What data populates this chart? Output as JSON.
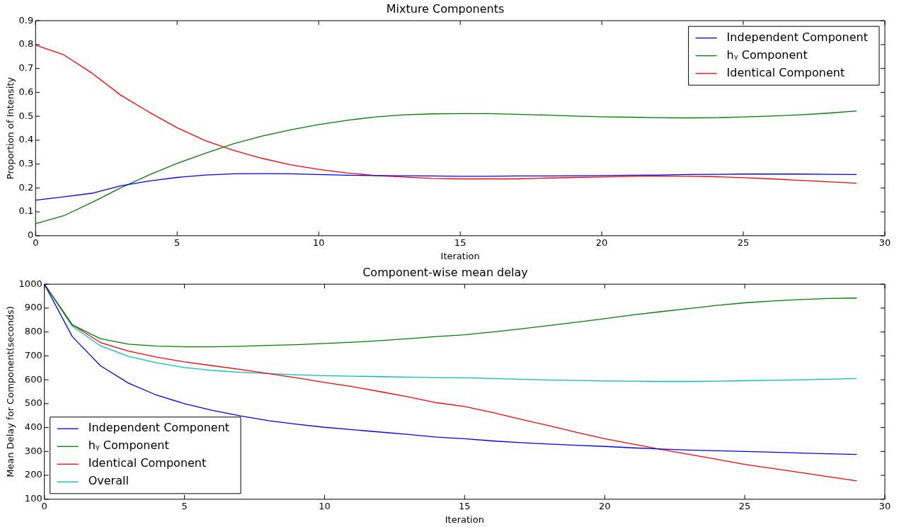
{
  "chart_data": [
    {
      "type": "line",
      "title": "Mixture Components",
      "xlabel": "Iteration",
      "ylabel": "Proportion of Intensity",
      "x": [
        0,
        1,
        2,
        3,
        4,
        5,
        6,
        7,
        8,
        9,
        10,
        11,
        12,
        13,
        14,
        15,
        16,
        17,
        18,
        19,
        20,
        21,
        22,
        23,
        24,
        25,
        26,
        27,
        28,
        29
      ],
      "series": [
        {
          "name": "Independent Component",
          "color": "#0000ff",
          "values": [
            0.149,
            0.163,
            0.178,
            0.209,
            0.229,
            0.244,
            0.254,
            0.259,
            0.26,
            0.259,
            0.256,
            0.253,
            0.252,
            0.251,
            0.25,
            0.249,
            0.249,
            0.25,
            0.25,
            0.251,
            0.252,
            0.253,
            0.254,
            0.256,
            0.257,
            0.258,
            0.258,
            0.258,
            0.257,
            0.256
          ]
        },
        {
          "name": "hᵧ Component",
          "color": "#008000",
          "values": [
            0.05,
            0.084,
            0.14,
            0.2,
            0.254,
            0.303,
            0.345,
            0.385,
            0.417,
            0.443,
            0.465,
            0.483,
            0.497,
            0.506,
            0.51,
            0.511,
            0.511,
            0.508,
            0.505,
            0.501,
            0.498,
            0.496,
            0.494,
            0.493,
            0.494,
            0.497,
            0.501,
            0.506,
            0.513,
            0.522
          ]
        },
        {
          "name": "Identical Component",
          "color": "#ff0000",
          "values": [
            0.798,
            0.757,
            0.68,
            0.589,
            0.518,
            0.452,
            0.398,
            0.357,
            0.324,
            0.297,
            0.278,
            0.263,
            0.252,
            0.246,
            0.24,
            0.238,
            0.238,
            0.238,
            0.241,
            0.244,
            0.246,
            0.248,
            0.25,
            0.249,
            0.247,
            0.243,
            0.238,
            0.232,
            0.226,
            0.22
          ]
        }
      ],
      "xlim": [
        0,
        30
      ],
      "xticks": [
        0,
        5,
        10,
        15,
        20,
        25,
        30
      ],
      "ylim": [
        0,
        0.9
      ],
      "yticks": [
        0,
        0.1,
        0.2,
        0.3,
        0.4,
        0.5,
        0.6,
        0.7,
        0.8,
        0.9
      ],
      "legend": "top right",
      "marker": "none",
      "line_style": "solid"
    },
    {
      "type": "line",
      "title": "Component-wise mean delay",
      "xlabel": "Iteration",
      "ylabel": "Mean Delay for Component(seconds)",
      "x": [
        0,
        1,
        2,
        3,
        4,
        5,
        6,
        7,
        8,
        9,
        10,
        11,
        12,
        13,
        14,
        15,
        16,
        17,
        18,
        19,
        20,
        21,
        22,
        23,
        24,
        25,
        26,
        27,
        28,
        29
      ],
      "series": [
        {
          "name": "Independent Component",
          "color": "#0000ff",
          "values": [
            1000,
            780,
            659,
            586,
            536,
            500,
            472,
            449,
            429,
            414,
            401,
            391,
            381,
            371,
            360,
            353,
            344,
            337,
            331,
            326,
            321,
            315,
            310,
            306,
            303,
            300,
            297,
            293,
            290,
            287
          ]
        },
        {
          "name": "hᵧ Component",
          "color": "#008000",
          "values": [
            1000,
            830,
            772,
            749,
            741,
            738,
            738,
            740,
            744,
            747,
            752,
            757,
            764,
            772,
            781,
            788,
            800,
            813,
            827,
            841,
            856,
            871,
            885,
            898,
            911,
            922,
            930,
            936,
            940,
            942
          ]
        },
        {
          "name": "Identical Component",
          "color": "#ff0000",
          "values": [
            1000,
            830,
            756,
            720,
            695,
            675,
            659,
            643,
            626,
            608,
            589,
            571,
            550,
            528,
            504,
            488,
            463,
            435,
            408,
            380,
            353,
            331,
            309,
            288,
            267,
            246,
            229,
            212,
            194,
            177
          ]
        },
        {
          "name": "Overall",
          "color": "#00bfbf",
          "values": [
            1000,
            824,
            742,
            698,
            671,
            651,
            639,
            631,
            626,
            621,
            617,
            615,
            613,
            611,
            609,
            608,
            605,
            602,
            599,
            597,
            595,
            594,
            593,
            593,
            594,
            596,
            598,
            600,
            602,
            605
          ]
        }
      ],
      "xlim": [
        0,
        30
      ],
      "xticks": [
        0,
        5,
        10,
        15,
        20,
        25,
        30
      ],
      "ylim": [
        100,
        1000
      ],
      "yticks": [
        100,
        200,
        300,
        400,
        500,
        600,
        700,
        800,
        900,
        1000
      ],
      "legend": "bottom left",
      "marker": "none",
      "line_style": "solid"
    }
  ]
}
